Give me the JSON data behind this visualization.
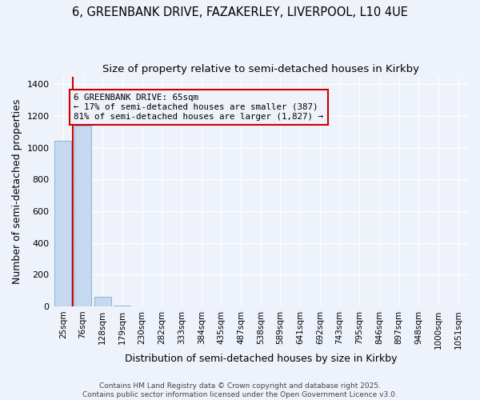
{
  "title_line1": "6, GREENBANK DRIVE, FAZAKERLEY, LIVERPOOL, L10 4UE",
  "title_line2": "Size of property relative to semi-detached houses in Kirkby",
  "xlabel": "Distribution of semi-detached houses by size in Kirkby",
  "ylabel": "Number of semi-detached properties",
  "categories": [
    "25sqm",
    "76sqm",
    "128sqm",
    "179sqm",
    "230sqm",
    "282sqm",
    "333sqm",
    "384sqm",
    "435sqm",
    "487sqm",
    "538sqm",
    "589sqm",
    "641sqm",
    "692sqm",
    "743sqm",
    "795sqm",
    "846sqm",
    "897sqm",
    "948sqm",
    "1000sqm",
    "1051sqm"
  ],
  "values": [
    1045,
    1140,
    60,
    4,
    0,
    0,
    0,
    0,
    0,
    0,
    0,
    0,
    0,
    0,
    0,
    0,
    0,
    0,
    0,
    0,
    0
  ],
  "bar_color": "#c5d8f0",
  "bar_edge_color": "#7aafd4",
  "highlight_line_color": "#cc0000",
  "annotation_text": "6 GREENBANK DRIVE: 65sqm\n← 17% of semi-detached houses are smaller (387)\n81% of semi-detached houses are larger (1,827) →",
  "annotation_box_color": "#cc0000",
  "ylim": [
    0,
    1450
  ],
  "yticks": [
    0,
    200,
    400,
    600,
    800,
    1000,
    1200,
    1400
  ],
  "background_color": "#eef2fa",
  "grid_color": "#ffffff",
  "footer_text": "Contains HM Land Registry data © Crown copyright and database right 2025.\nContains public sector information licensed under the Open Government Licence v3.0.",
  "title_fontsize": 10.5,
  "subtitle_fontsize": 9.5,
  "axis_label_fontsize": 9,
  "tick_fontsize": 8,
  "footer_fontsize": 6.5
}
